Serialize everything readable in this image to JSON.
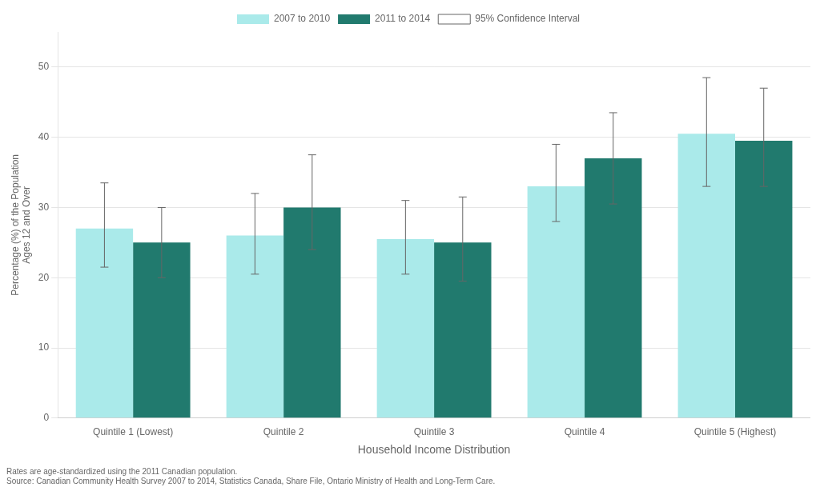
{
  "chart_data": {
    "type": "bar",
    "categories": [
      "Quintile 1 (Lowest)",
      "Quintile 2",
      "Quintile 3",
      "Quintile 4",
      "Quintile 5 (Highest)"
    ],
    "series": [
      {
        "name": "2007 to 2010",
        "color": "#aaeaea",
        "values": [
          27.0,
          26.0,
          25.5,
          33.0,
          40.5
        ],
        "ci_low": [
          21.5,
          20.5,
          20.5,
          28.0,
          33.0
        ],
        "ci_high": [
          33.5,
          32.0,
          31.0,
          39.0,
          48.5
        ]
      },
      {
        "name": "2011 to 2014",
        "color": "#217a6e",
        "values": [
          25.0,
          30.0,
          25.0,
          37.0,
          39.5
        ],
        "ci_low": [
          20.0,
          24.0,
          19.5,
          30.5,
          33.0
        ],
        "ci_high": [
          30.0,
          37.5,
          31.5,
          43.5,
          47.0
        ]
      }
    ],
    "error_bars": {
      "name": "95% Confidence Interval",
      "color": "#666666"
    },
    "xlabel": "Household Income Distribution",
    "ylabel": "Percentage (%) of the Population\nAges 12 and Over",
    "footnote": [
      "Rates are age-standardized using the 2011 Canadian population.",
      "Source: Canadian Community Health Survey 2007 to 2014, Statistics Canada, Share File, Ontario Ministry of Health and Long-Term Care."
    ],
    "ylim": [
      0,
      55
    ],
    "yticks": [
      0,
      10,
      20,
      30,
      40,
      50
    ],
    "grid": true,
    "legend": "top"
  }
}
